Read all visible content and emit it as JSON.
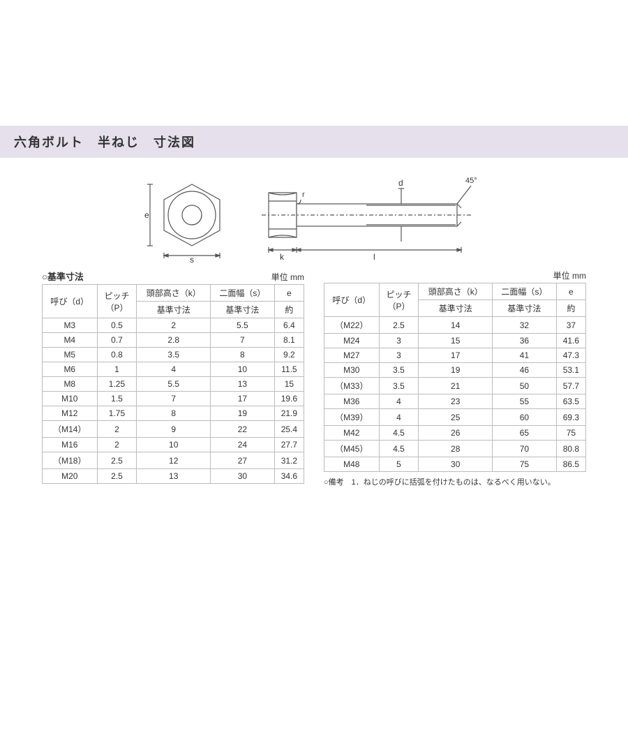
{
  "title": "六角ボルト　半ねじ　寸法図",
  "diagram": {
    "labels": {
      "e": "e",
      "s": "s",
      "k": "k",
      "l": "l",
      "d": "d",
      "r": "r",
      "angle": "45°"
    },
    "stroke": "#555555",
    "fill": "#ffffff"
  },
  "unit_label": "単位 mm",
  "table_caption": "○基準寸法",
  "headers": {
    "name": "呼び（d）",
    "pitch": "ピッチ\n（P）",
    "head_k": "頭部高さ（k）",
    "width_s": "二面幅（s）",
    "e": "e",
    "sub_std": "基準寸法",
    "sub_approx": "約"
  },
  "table_left": [
    {
      "name": "M3",
      "p": "0.5",
      "k": "2",
      "s": "5.5",
      "e": "6.4"
    },
    {
      "name": "M4",
      "p": "0.7",
      "k": "2.8",
      "s": "7",
      "e": "8.1"
    },
    {
      "name": "M5",
      "p": "0.8",
      "k": "3.5",
      "s": "8",
      "e": "9.2"
    },
    {
      "name": "M6",
      "p": "1",
      "k": "4",
      "s": "10",
      "e": "11.5"
    },
    {
      "name": "M8",
      "p": "1.25",
      "k": "5.5",
      "s": "13",
      "e": "15"
    },
    {
      "name": "M10",
      "p": "1.5",
      "k": "7",
      "s": "17",
      "e": "19.6"
    },
    {
      "name": "M12",
      "p": "1.75",
      "k": "8",
      "s": "19",
      "e": "21.9"
    },
    {
      "name": "（M14）",
      "p": "2",
      "k": "9",
      "s": "22",
      "e": "25.4"
    },
    {
      "name": "M16",
      "p": "2",
      "k": "10",
      "s": "24",
      "e": "27.7"
    },
    {
      "name": "（M18）",
      "p": "2.5",
      "k": "12",
      "s": "27",
      "e": "31.2"
    },
    {
      "name": "M20",
      "p": "2.5",
      "k": "13",
      "s": "30",
      "e": "34.6"
    }
  ],
  "table_right": [
    {
      "name": "（M22）",
      "p": "2.5",
      "k": "14",
      "s": "32",
      "e": "37"
    },
    {
      "name": "M24",
      "p": "3",
      "k": "15",
      "s": "36",
      "e": "41.6"
    },
    {
      "name": "M27",
      "p": "3",
      "k": "17",
      "s": "41",
      "e": "47.3"
    },
    {
      "name": "M30",
      "p": "3.5",
      "k": "19",
      "s": "46",
      "e": "53.1"
    },
    {
      "name": "（M33）",
      "p": "3.5",
      "k": "21",
      "s": "50",
      "e": "57.7"
    },
    {
      "name": "M36",
      "p": "4",
      "k": "23",
      "s": "55",
      "e": "63.5"
    },
    {
      "name": "（M39）",
      "p": "4",
      "k": "25",
      "s": "60",
      "e": "69.3"
    },
    {
      "name": "M42",
      "p": "4.5",
      "k": "26",
      "s": "65",
      "e": "75"
    },
    {
      "name": "（M45）",
      "p": "4.5",
      "k": "28",
      "s": "70",
      "e": "80.8"
    },
    {
      "name": "M48",
      "p": "5",
      "k": "30",
      "s": "75",
      "e": "86.5"
    }
  ],
  "footnote": "○備考　1．ねじの呼びに括弧を付けたものは、なるべく用いない。",
  "colors": {
    "title_bg": "#e5e0ec",
    "border": "#bcbcbc",
    "text": "#333333"
  }
}
